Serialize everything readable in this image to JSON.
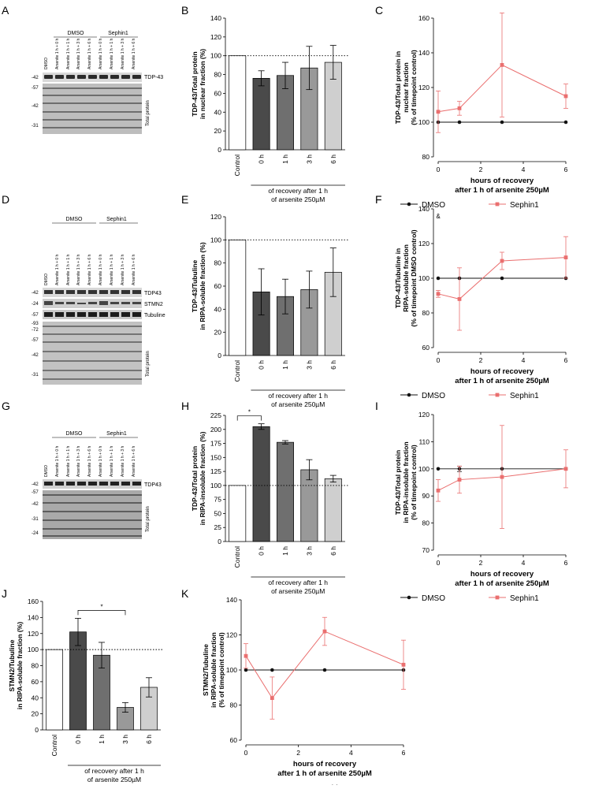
{
  "panel_letters": [
    "A",
    "B",
    "C",
    "D",
    "E",
    "F",
    "G",
    "H",
    "I",
    "J",
    "K"
  ],
  "colors": {
    "dmso": "#111111",
    "sephin1": "#ea6f6f",
    "bar_control": "#ffffff",
    "bar_0h": "#4a4a4a",
    "bar_1h": "#6f6f6f",
    "bar_3h": "#999999",
    "bar_6h": "#cfcfcf"
  },
  "blots": {
    "group_dmso": "DMSO",
    "group_sephin1": "Sephin1",
    "lane_labels": [
      "DMSO",
      "Arsenite 1 h + 0 h",
      "Arsenite 1 h + 1 h",
      "Arsenite 1 h + 3 h",
      "Arsenite 1 h + 6 h",
      "Arsenite 1 h + 0 h",
      "Arsenite 1 h + 1 h",
      "Arsenite 1 h + 3 h",
      "Arsenite 1 h + 6 h"
    ],
    "A": {
      "markers": [
        "-42",
        "-57",
        "-42",
        "-31"
      ],
      "bands": [
        "TDP-43"
      ],
      "total": "Total protein"
    },
    "D": {
      "markers": [
        "-42",
        "-24",
        "-57",
        "-93",
        "-72",
        "-57",
        "-42",
        "-31"
      ],
      "bands": [
        "TDP43",
        "STMN2",
        "Tubuline"
      ],
      "total": "Total protein"
    },
    "G": {
      "markers": [
        "-42",
        "-57",
        "-42",
        "-31",
        "-24"
      ],
      "bands": [
        "TDP43"
      ],
      "total": "Total protein"
    }
  },
  "bar_common": {
    "categories": [
      "Control",
      "0 h",
      "1 h",
      "3 h",
      "6 h"
    ],
    "xcaption_line1": "of recovery after 1 h",
    "xcaption_line2": "of arsenite 250µM"
  },
  "line_common": {
    "xlabel_line1": "hours of recovery",
    "xlabel_line2": "after 1 h of arsenite 250µM",
    "legend_dmso": "DMSO",
    "legend_sephin1": "Sephin1"
  },
  "chart_data": [
    {
      "panel": "B",
      "type": "bar",
      "ylabel_line1": "TDP-43/Total protein",
      "ylabel_line2": "in nuclear fraction (%)",
      "yticks": [
        "0",
        "20",
        "40",
        "60",
        "80",
        "100",
        "120",
        "140"
      ],
      "ylim": [
        0,
        140
      ],
      "categories": [
        "Control",
        "0 h",
        "1 h",
        "3 h",
        "6 h"
      ],
      "values": [
        100,
        76,
        79,
        87,
        93
      ],
      "errors": [
        0,
        8,
        14,
        23,
        18
      ],
      "refline": 100,
      "significance": null
    },
    {
      "panel": "E",
      "type": "bar",
      "ylabel_line1": "TDP-43/Tubuline",
      "ylabel_line2": "in RIPA-soluble fraction (%)",
      "yticks": [
        "0",
        "20",
        "40",
        "60",
        "80",
        "100",
        "120"
      ],
      "ylim": [
        0,
        120
      ],
      "categories": [
        "Control",
        "0 h",
        "1 h",
        "3 h",
        "6 h"
      ],
      "values": [
        100,
        55,
        51,
        57,
        72
      ],
      "errors": [
        0,
        20,
        15,
        16,
        21
      ],
      "refline": 100,
      "significance": null
    },
    {
      "panel": "H",
      "type": "bar",
      "ylabel_line1": "TDP-43/Total protein",
      "ylabel_line2": "in RIPA-insoluble fraction (%)",
      "yticks": [
        "0",
        "25",
        "50",
        "75",
        "100",
        "125",
        "150",
        "175",
        "200",
        "225"
      ],
      "ylim": [
        0,
        225
      ],
      "categories": [
        "Control",
        "0 h",
        "1 h",
        "3 h",
        "6 h"
      ],
      "values": [
        100,
        205,
        177,
        128,
        112
      ],
      "errors": [
        0,
        5,
        3,
        18,
        6
      ],
      "refline": 100,
      "significance": {
        "from": 0,
        "to": 1,
        "label": "*"
      }
    },
    {
      "panel": "J",
      "type": "bar",
      "ylabel_line1": "STMN2/Tubuline",
      "ylabel_line2": "in RIPA-soluble fraction (%)",
      "yticks": [
        "0",
        "20",
        "40",
        "60",
        "80",
        "100",
        "120",
        "140",
        "160"
      ],
      "ylim": [
        0,
        160
      ],
      "categories": [
        "Control",
        "0 h",
        "1 h",
        "3 h",
        "6 h"
      ],
      "values": [
        100,
        122,
        93,
        28,
        53
      ],
      "errors": [
        0,
        17,
        16,
        6,
        12
      ],
      "refline": 100,
      "significance": {
        "from": 1,
        "to": 3,
        "label": "*"
      }
    },
    {
      "panel": "C",
      "type": "line",
      "ylabel_line1": "TDP-43/Total protein in",
      "ylabel_line2": "nuclear fraction",
      "ylabel_line3": "(% of timepoint control)",
      "yticks": [
        "80",
        "100",
        "120",
        "140",
        "160"
      ],
      "ylim": [
        80,
        160
      ],
      "xticks": [
        "0",
        "2",
        "4",
        "6"
      ],
      "xlim": [
        0,
        6
      ],
      "x": [
        0,
        1,
        3,
        6
      ],
      "series": [
        {
          "name": "DMSO",
          "values": [
            100,
            100,
            100,
            100
          ],
          "errors": [
            0,
            0,
            0,
            0
          ]
        },
        {
          "name": "Sephin1",
          "values": [
            106,
            108,
            133,
            115
          ],
          "errors": [
            12,
            4,
            30,
            7
          ]
        }
      ],
      "annotation": ""
    },
    {
      "panel": "F",
      "type": "line",
      "ylabel_line1": "TDP-43/Tubuline in",
      "ylabel_line2": "RIPA-soluble fraction",
      "ylabel_line3": "(% of timepoint DMSO control)",
      "yticks": [
        "60",
        "80",
        "100",
        "120",
        "140"
      ],
      "ylim": [
        60,
        140
      ],
      "xticks": [
        "0",
        "2",
        "4",
        "6"
      ],
      "xlim": [
        0,
        6
      ],
      "x": [
        0,
        1,
        3,
        6
      ],
      "series": [
        {
          "name": "DMSO",
          "values": [
            100,
            100,
            100,
            100
          ],
          "errors": [
            0,
            0,
            0,
            0
          ]
        },
        {
          "name": "Sephin1",
          "values": [
            91,
            88,
            110,
            112
          ],
          "errors": [
            2,
            18,
            5,
            12
          ]
        }
      ],
      "annotation": "&"
    },
    {
      "panel": "I",
      "type": "line",
      "ylabel_line1": "TDP-43/Total protein",
      "ylabel_line2": "in RIPA-insoluble fraction",
      "ylabel_line3": "(% of timepoint control)",
      "yticks": [
        "70",
        "80",
        "90",
        "100",
        "110",
        "120"
      ],
      "ylim": [
        70,
        120
      ],
      "xticks": [
        "0",
        "2",
        "4",
        "6"
      ],
      "xlim": [
        0,
        6
      ],
      "x": [
        0,
        1,
        3,
        6
      ],
      "series": [
        {
          "name": "DMSO",
          "values": [
            100,
            100,
            100,
            100
          ],
          "errors": [
            0,
            1,
            0,
            0
          ]
        },
        {
          "name": "Sephin1",
          "values": [
            92,
            96,
            97,
            100
          ],
          "errors": [
            4,
            5,
            19,
            7
          ]
        }
      ],
      "annotation": ""
    },
    {
      "panel": "K",
      "type": "line",
      "ylabel_line1": "STMN2/Tubuline",
      "ylabel_line2": "in RIPA-soluble fraction",
      "ylabel_line3": "(% of timepoint control)",
      "yticks": [
        "60",
        "80",
        "100",
        "120",
        "140"
      ],
      "ylim": [
        60,
        140
      ],
      "xticks": [
        "0",
        "2",
        "4",
        "6"
      ],
      "xlim": [
        0,
        6
      ],
      "x": [
        0,
        1,
        3,
        6
      ],
      "series": [
        {
          "name": "DMSO",
          "values": [
            100,
            100,
            100,
            100
          ],
          "errors": [
            0,
            0,
            0,
            0
          ]
        },
        {
          "name": "Sephin1",
          "values": [
            108,
            84,
            122,
            103
          ],
          "errors": [
            7,
            12,
            8,
            14
          ]
        }
      ],
      "annotation": ""
    }
  ]
}
